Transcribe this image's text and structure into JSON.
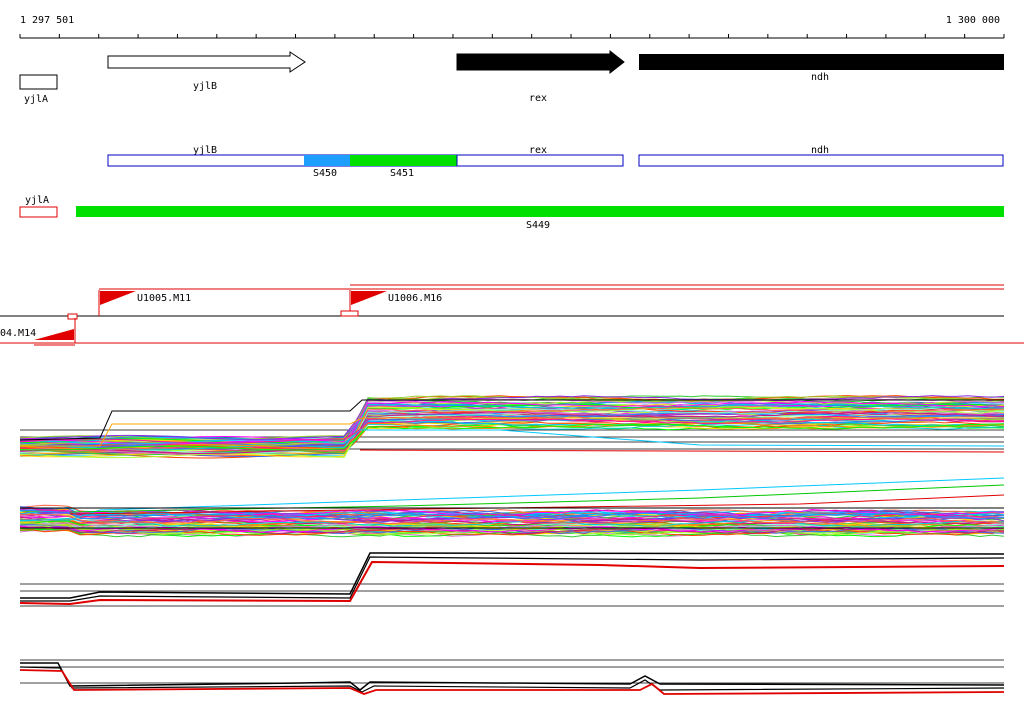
{
  "ruler": {
    "start_label": "1 297 501",
    "end_label": "1 300 000"
  },
  "genes": [
    {
      "name": "yjlA",
      "strand": "none"
    },
    {
      "name": "yjlB",
      "strand": "forward"
    },
    {
      "name": "rex",
      "strand": "forward"
    },
    {
      "name": "ndh",
      "strand": "forward"
    }
  ],
  "segments_track": {
    "boxes": [
      {
        "name": "yjlB"
      },
      {
        "name": "rex"
      },
      {
        "name": "ndh"
      }
    ],
    "highlights": [
      {
        "label": "S450",
        "color": "#1e9fff"
      },
      {
        "label": "S451",
        "color": "#00e000"
      }
    ]
  },
  "long_segment_track": {
    "gene_box": {
      "name": "yjlA",
      "color": "#e00000"
    },
    "bar": {
      "label": "S449",
      "color": "#00e000"
    }
  },
  "promoters": [
    {
      "label": "U1005.M11"
    },
    {
      "label": "U1006.M16"
    },
    {
      "label": "04.M14"
    }
  ],
  "colors": {
    "accent_red": "#e00000",
    "gene_outline_blue": "#0000c0",
    "highlight_green": "#00e000",
    "highlight_blue": "#1e9fff"
  }
}
